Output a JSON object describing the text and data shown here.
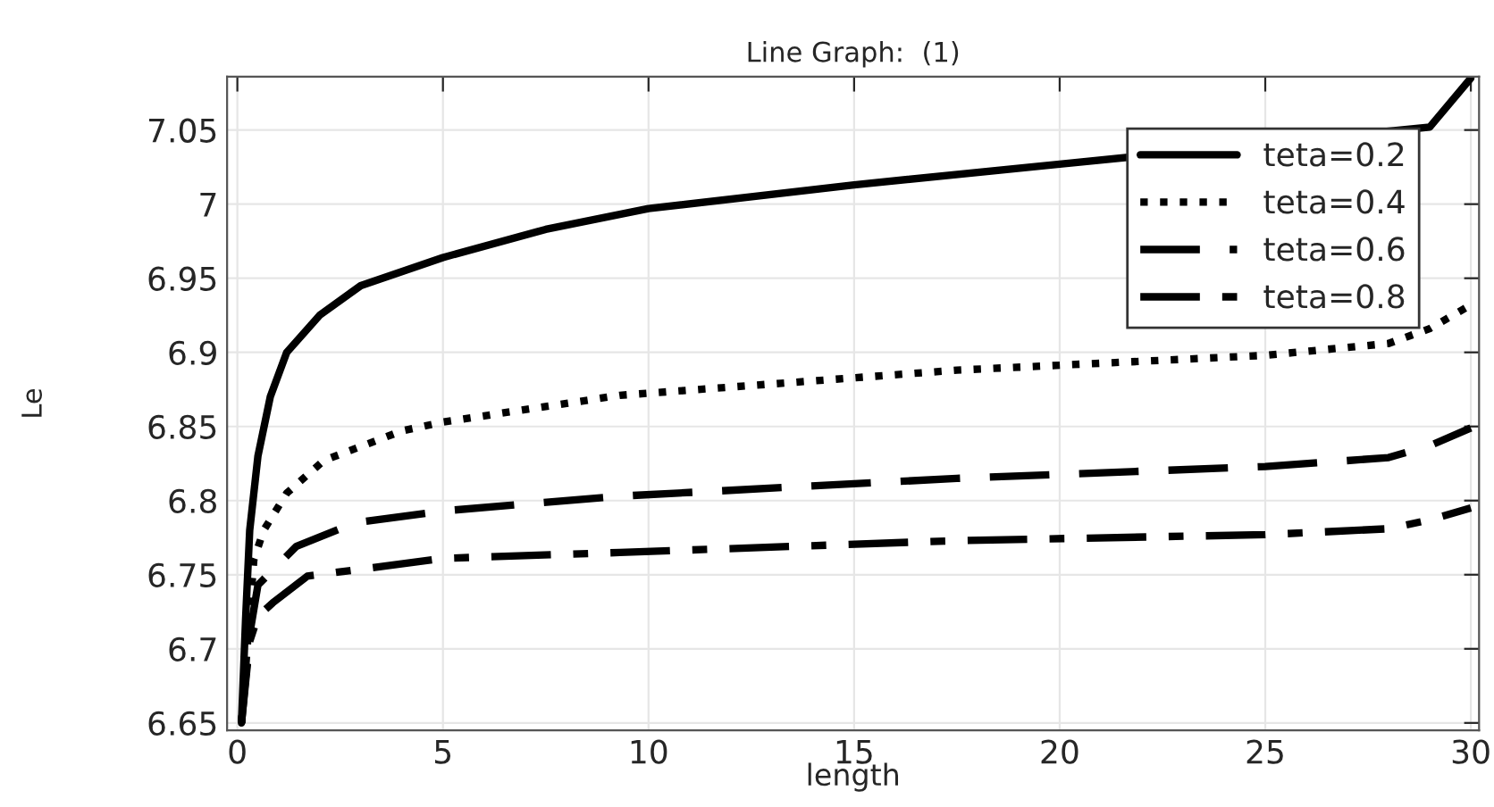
{
  "chart_data": {
    "type": "line",
    "title": "Line Graph:  (1)",
    "xlabel": "length",
    "ylabel": "Le",
    "xlim": [
      -0.25,
      30.2
    ],
    "xticks": [
      0,
      5,
      10,
      15,
      20,
      25,
      30
    ],
    "ylim": [
      6.645,
      7.086
    ],
    "yticks": [
      6.65,
      6.7,
      6.75,
      6.8,
      6.85,
      6.9,
      6.95,
      7,
      7.05
    ],
    "grid": true,
    "legend": "top right",
    "series": [
      {
        "name": "teta=0.2",
        "color": "#000000",
        "line_style": "solid",
        "x": [
          0.1,
          0.2,
          0.3,
          0.5,
          0.8,
          1.2,
          2,
          3,
          5,
          7.5,
          10,
          15,
          20,
          25,
          28,
          29,
          30
        ],
        "values": [
          6.65,
          6.72,
          6.78,
          6.83,
          6.87,
          6.9,
          6.925,
          6.945,
          6.964,
          6.983,
          6.997,
          7.013,
          7.027,
          null,
          null,
          7.052,
          7.085
        ]
      },
      {
        "name": "teta=0.4",
        "color": "#000000",
        "line_style": "dotted",
        "x": [
          0.1,
          0.4,
          0.64,
          1.2,
          2.1,
          4,
          5,
          9.3,
          17.5,
          25,
          28,
          29,
          30
        ],
        "values": [
          6.65,
          6.76,
          6.78,
          6.805,
          6.827,
          6.847,
          6.853,
          6.871,
          6.888,
          6.898,
          6.906,
          6.916,
          6.932
        ]
      },
      {
        "name": "teta=0.6",
        "color": "#000000",
        "line_style": "dashed",
        "x": [
          0.1,
          0.3,
          0.5,
          1.43,
          2.86,
          5,
          9.3,
          17.5,
          25,
          28,
          29,
          30
        ],
        "values": [
          6.65,
          6.71,
          6.743,
          6.769,
          6.785,
          6.793,
          6.803,
          6.815,
          6.823,
          6.829,
          6.837,
          6.849
        ]
      },
      {
        "name": "teta=0.8",
        "color": "#000000",
        "line_style": "dashdot",
        "x": [
          0.1,
          0.3,
          0.5,
          0.86,
          1.7,
          5,
          9.3,
          17.5,
          25,
          28,
          29,
          30
        ],
        "values": [
          6.65,
          6.705,
          6.722,
          6.731,
          6.749,
          6.761,
          6.765,
          6.773,
          6.777,
          6.781,
          6.787,
          6.795
        ]
      }
    ]
  }
}
